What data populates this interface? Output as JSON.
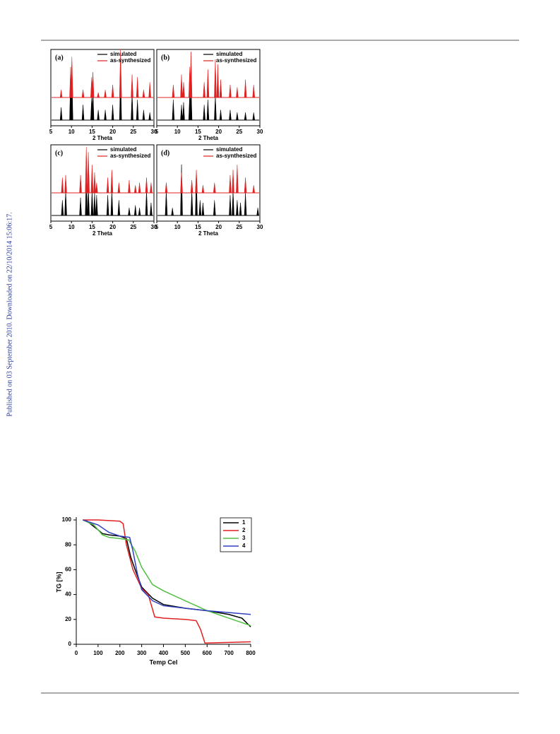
{
  "side_note": "Published on 03 September 2010. Downloaded on 22/10/2014 15:06:17.",
  "pxrd_figure": {
    "panels": [
      {
        "label": "(a)",
        "xlabel": "2 Theta",
        "xlim": [
          5,
          30
        ],
        "xticks": [
          5,
          10,
          15,
          20,
          25,
          30
        ],
        "series": [
          {
            "name": "simulated",
            "color": "#000000",
            "x": [
              7.5,
              9.8,
              10.1,
              12.8,
              14.9,
              15.2,
              16.5,
              18.2,
              20,
              21.9,
              24.7,
              26,
              27.5,
              29
            ],
            "values": [
              0.25,
              0.9,
              1,
              0.3,
              0.45,
              0.6,
              0.2,
              0.2,
              0.3,
              0.95,
              0.55,
              0.4,
              0.2,
              0.15
            ]
          },
          {
            "name": "as-synthesized",
            "color": "#e02020",
            "x": [
              7.5,
              9.8,
              10.1,
              12.8,
              14.9,
              15.2,
              16.5,
              18.2,
              20,
              21.9,
              24.7,
              26,
              27.5,
              29
            ],
            "values": [
              0.15,
              0.6,
              0.8,
              0.15,
              0.4,
              0.5,
              0.1,
              0.15,
              0.25,
              0.95,
              0.45,
              0.4,
              0.15,
              0.3
            ]
          }
        ]
      },
      {
        "label": "(b)",
        "xlabel": "2 Theta",
        "xlim": [
          5,
          30
        ],
        "xticks": [
          5,
          10,
          15,
          20,
          25,
          30
        ],
        "series": [
          {
            "name": "simulated",
            "color": "#000000",
            "x": [
              9,
              11,
              11.5,
              13,
              13.3,
              16.5,
              17.4,
              19.2,
              20.5,
              22.8,
              24.5,
              26.5,
              28.5
            ],
            "values": [
              0.4,
              0.3,
              0.35,
              0.55,
              0.7,
              0.3,
              0.4,
              0.5,
              0.2,
              0.2,
              0.15,
              0.15,
              0.15
            ]
          },
          {
            "name": "as-synthesized",
            "color": "#e02020",
            "x": [
              9,
              11,
              11.5,
              13,
              13.3,
              16.5,
              17.4,
              19.2,
              19.8,
              20.5,
              22.8,
              24.5,
              26.5,
              28.5
            ],
            "values": [
              0.25,
              0.45,
              0.3,
              0.6,
              0.9,
              0.3,
              0.55,
              0.75,
              0.65,
              0.35,
              0.25,
              0.2,
              0.35,
              0.25
            ]
          }
        ]
      },
      {
        "label": "(c)",
        "xlabel": "2 Theta",
        "xlim": [
          5,
          30
        ],
        "xticks": [
          5,
          10,
          15,
          20,
          25,
          30
        ],
        "series": [
          {
            "name": "simulated",
            "color": "#000000",
            "x": [
              7.8,
              8.6,
              12.2,
              13.6,
              14.1,
              15,
              15.6,
              16.1,
              18.8,
              19.8,
              21.5,
              24,
              25.5,
              26.5,
              28.2,
              29.3
            ],
            "values": [
              0.3,
              0.5,
              0.35,
              0.8,
              0.55,
              0.5,
              0.45,
              0.4,
              0.4,
              0.5,
              0.3,
              0.15,
              0.2,
              0.15,
              0.5,
              0.25
            ]
          },
          {
            "name": "as-synthesized",
            "color": "#e02020",
            "x": [
              7.8,
              8.6,
              12.2,
              13.6,
              14.1,
              15,
              15.6,
              16.1,
              18.8,
              19.8,
              21.5,
              24,
              25.5,
              26.5,
              28.2,
              29.3
            ],
            "values": [
              0.3,
              0.35,
              0.35,
              0.9,
              0.8,
              0.55,
              0.4,
              0.2,
              0.3,
              0.45,
              0.2,
              0.25,
              0.15,
              0.2,
              0.3,
              0.2
            ]
          }
        ]
      },
      {
        "label": "(d)",
        "xlabel": "2 Theta",
        "xlim": [
          5,
          30
        ],
        "xticks": [
          5,
          10,
          15,
          20,
          25,
          30
        ],
        "series": [
          {
            "name": "simulated",
            "color": "#000000",
            "x": [
              7.3,
              8.8,
              11,
              13.5,
              14.6,
              15.5,
              16.2,
              19,
              22.8,
              23.5,
              24.5,
              25.3,
              26.5,
              29.5
            ],
            "values": [
              0.5,
              0.15,
              1,
              0.5,
              0.8,
              0.3,
              0.25,
              0.3,
              0.4,
              0.5,
              0.3,
              0.25,
              0.45,
              0.15
            ]
          },
          {
            "name": "as-synthesized",
            "color": "#e02020",
            "x": [
              7.3,
              11,
              13.5,
              14.6,
              16.2,
              19,
              22.8,
              23.5,
              24.5,
              26.5,
              28.5
            ],
            "values": [
              0.2,
              0.4,
              0.25,
              0.45,
              0.15,
              0.2,
              0.35,
              0.45,
              0.55,
              0.3,
              0.15
            ]
          }
        ]
      }
    ]
  },
  "chart_data": {
    "type": "line",
    "xlabel": "Temp Cel",
    "ylabel": "TG [%]",
    "xlim": [
      0,
      800
    ],
    "xticks": [
      0,
      100,
      200,
      300,
      400,
      500,
      600,
      700,
      800
    ],
    "ylim": [
      0,
      100
    ],
    "yticks": [
      0,
      20,
      40,
      60,
      80,
      100
    ],
    "legend": "top-right",
    "series": [
      {
        "name": "1",
        "color": "#000000",
        "x": [
          30,
          50,
          100,
          120,
          150,
          200,
          230,
          250,
          270,
          300,
          350,
          400,
          500,
          600,
          700,
          760,
          800
        ],
        "values": [
          100,
          99,
          92,
          89,
          88,
          87,
          85,
          70,
          60,
          46,
          37,
          32,
          29,
          27,
          24,
          21,
          14
        ]
      },
      {
        "name": "2",
        "color": "#e02020",
        "x": [
          30,
          100,
          200,
          215,
          230,
          260,
          300,
          330,
          360,
          400,
          500,
          550,
          570,
          590,
          700,
          800
        ],
        "values": [
          100,
          100,
          99,
          97,
          80,
          60,
          45,
          40,
          22,
          21,
          20,
          19,
          12,
          1,
          1.5,
          2
        ]
      },
      {
        "name": "3",
        "color": "#50c040",
        "x": [
          30,
          80,
          120,
          150,
          200,
          240,
          270,
          300,
          350,
          400,
          500,
          600,
          700,
          800
        ],
        "values": [
          100,
          96,
          88,
          86,
          85,
          84,
          75,
          62,
          48,
          43,
          35,
          27,
          21,
          15
        ]
      },
      {
        "name": "4",
        "color": "#3040c0",
        "x": [
          30,
          100,
          150,
          200,
          245,
          260,
          280,
          300,
          350,
          400,
          500,
          600,
          700,
          800
        ],
        "values": [
          100,
          96,
          90,
          87,
          86,
          75,
          57,
          44,
          35,
          31,
          29,
          27,
          25.5,
          24
        ]
      }
    ]
  }
}
